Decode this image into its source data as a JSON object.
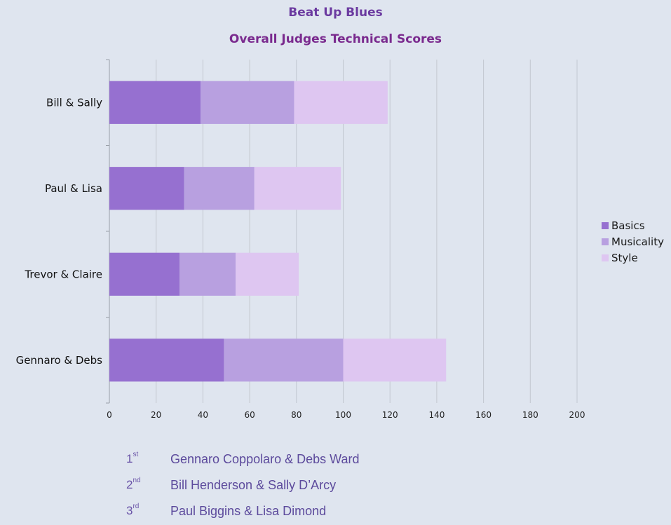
{
  "header": {
    "title": "Beat Up Blues",
    "subtitle": "Overall Judges Technical Scores"
  },
  "chart_data": {
    "type": "bar",
    "orientation": "horizontal",
    "stacked": true,
    "categories": [
      "Bill & Sally",
      "Paul & Lisa",
      "Trevor & Claire",
      "Gennaro & Debs"
    ],
    "series": [
      {
        "name": "Basics",
        "color": "#9670d0",
        "values": [
          39,
          32,
          30,
          49
        ]
      },
      {
        "name": "Musicality",
        "color": "#b8a0e0",
        "values": [
          40,
          30,
          24,
          51
        ]
      },
      {
        "name": "Style",
        "color": "#dec6f1",
        "values": [
          40,
          37,
          27,
          44
        ]
      }
    ],
    "xlim": [
      0,
      200
    ],
    "xticks": [
      "0",
      "20",
      "40",
      "60",
      "80",
      "100",
      "120",
      "140",
      "160",
      "180",
      "200"
    ],
    "grid": true,
    "legend_position": "right"
  },
  "ranking": [
    {
      "pos": "1",
      "suffix": "st",
      "name": "Gennaro Coppolaro & Debs Ward"
    },
    {
      "pos": "2",
      "suffix": "nd",
      "name": "Bill Henderson & Sally D’Arcy"
    },
    {
      "pos": "3",
      "suffix": "rd",
      "name": "Paul Biggins & Lisa Dimond"
    }
  ]
}
